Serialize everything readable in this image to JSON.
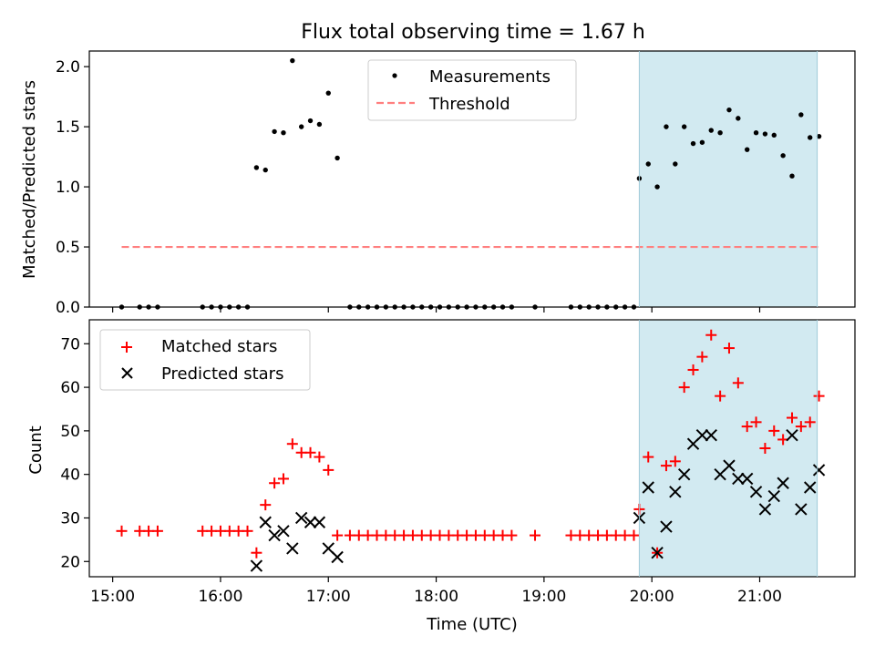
{
  "figure": {
    "title": "Flux total observing time = 1.67 h",
    "xlabel": "Time (UTC)",
    "highlight_color": "#add8e6"
  },
  "chart_data": [
    {
      "type": "scatter",
      "panel": "top",
      "title": "Flux total observing time = 1.67 h",
      "ylabel": "Matched/Predicted stars",
      "xlim": [
        "14:47",
        "21:53"
      ],
      "ylim": [
        0,
        2.13
      ],
      "yticks": [
        0.0,
        0.5,
        1.0,
        1.5,
        2.0
      ],
      "ytick_labels": [
        "0.0",
        "0.5",
        "1.0",
        "1.5",
        "2.0"
      ],
      "legend": "upper center",
      "highlight_span": [
        "19:53",
        "21:32"
      ],
      "series": [
        {
          "name": "Measurements",
          "marker": "dot",
          "color": "#000000",
          "points": [
            [
              "15:05",
              0
            ],
            [
              "15:15",
              0
            ],
            [
              "15:20",
              0
            ],
            [
              "15:25",
              0
            ],
            [
              "15:50",
              0
            ],
            [
              "15:55",
              0
            ],
            [
              "16:00",
              0
            ],
            [
              "16:05",
              0
            ],
            [
              "16:10",
              0
            ],
            [
              "16:15",
              0
            ],
            [
              "16:20",
              1.16
            ],
            [
              "16:25",
              1.14
            ],
            [
              "16:30",
              1.46
            ],
            [
              "16:35",
              1.45
            ],
            [
              "16:40",
              2.05
            ],
            [
              "16:45",
              1.5
            ],
            [
              "16:50",
              1.55
            ],
            [
              "16:55",
              1.52
            ],
            [
              "17:00",
              1.78
            ],
            [
              "17:05",
              1.24
            ],
            [
              "17:12",
              0
            ],
            [
              "17:17",
              0
            ],
            [
              "17:22",
              0
            ],
            [
              "17:27",
              0
            ],
            [
              "17:32",
              0
            ],
            [
              "17:37",
              0
            ],
            [
              "17:42",
              0
            ],
            [
              "17:47",
              0
            ],
            [
              "17:52",
              0
            ],
            [
              "17:57",
              0
            ],
            [
              "18:02",
              0
            ],
            [
              "18:07",
              0
            ],
            [
              "18:12",
              0
            ],
            [
              "18:17",
              0
            ],
            [
              "18:22",
              0
            ],
            [
              "18:27",
              0
            ],
            [
              "18:32",
              0
            ],
            [
              "18:37",
              0
            ],
            [
              "18:42",
              0
            ],
            [
              "18:55",
              0
            ],
            [
              "19:15",
              0
            ],
            [
              "19:20",
              0
            ],
            [
              "19:25",
              0
            ],
            [
              "19:30",
              0
            ],
            [
              "19:35",
              0
            ],
            [
              "19:40",
              0
            ],
            [
              "19:45",
              0
            ],
            [
              "19:50",
              0
            ],
            [
              "19:53",
              1.07
            ],
            [
              "19:58",
              1.19
            ],
            [
              "20:03",
              1.0
            ],
            [
              "20:08",
              1.5
            ],
            [
              "20:13",
              1.19
            ],
            [
              "20:18",
              1.5
            ],
            [
              "20:23",
              1.36
            ],
            [
              "20:28",
              1.37
            ],
            [
              "20:33",
              1.47
            ],
            [
              "20:38",
              1.45
            ],
            [
              "20:43",
              1.64
            ],
            [
              "20:48",
              1.57
            ],
            [
              "20:53",
              1.31
            ],
            [
              "20:58",
              1.45
            ],
            [
              "21:03",
              1.44
            ],
            [
              "21:08",
              1.43
            ],
            [
              "21:13",
              1.26
            ],
            [
              "21:18",
              1.09
            ],
            [
              "21:23",
              1.6
            ],
            [
              "21:28",
              1.41
            ],
            [
              "21:33",
              1.42
            ]
          ]
        },
        {
          "name": "Threshold",
          "marker": "dashed-line",
          "color": "#ff7f7f",
          "points": [
            [
              "15:05",
              0.5
            ],
            [
              "21:33",
              0.5
            ]
          ]
        }
      ]
    },
    {
      "type": "scatter",
      "panel": "bottom",
      "ylabel": "Count",
      "xlabel": "Time (UTC)",
      "xlim": [
        "14:47",
        "21:53"
      ],
      "ylim": [
        16.5,
        75.5
      ],
      "yticks": [
        20,
        30,
        40,
        50,
        60,
        70
      ],
      "ytick_labels": [
        "20",
        "30",
        "40",
        "50",
        "60",
        "70"
      ],
      "xticks": [
        "15:00",
        "16:00",
        "17:00",
        "18:00",
        "19:00",
        "20:00",
        "21:00"
      ],
      "xtick_labels": [
        "15:00",
        "16:00",
        "17:00",
        "18:00",
        "19:00",
        "20:00",
        "21:00"
      ],
      "legend": "upper left",
      "highlight_span": [
        "19:53",
        "21:32"
      ],
      "series": [
        {
          "name": "Matched stars",
          "marker": "plus",
          "color": "#ff0000",
          "points": [
            [
              "15:05",
              27
            ],
            [
              "15:15",
              27
            ],
            [
              "15:20",
              27
            ],
            [
              "15:25",
              27
            ],
            [
              "15:50",
              27
            ],
            [
              "15:55",
              27
            ],
            [
              "16:00",
              27
            ],
            [
              "16:05",
              27
            ],
            [
              "16:10",
              27
            ],
            [
              "16:15",
              27
            ],
            [
              "16:20",
              22
            ],
            [
              "16:25",
              33
            ],
            [
              "16:30",
              38
            ],
            [
              "16:35",
              39
            ],
            [
              "16:40",
              47
            ],
            [
              "16:45",
              45
            ],
            [
              "16:50",
              45
            ],
            [
              "16:55",
              44
            ],
            [
              "17:00",
              41
            ],
            [
              "17:05",
              26
            ],
            [
              "17:12",
              26
            ],
            [
              "17:17",
              26
            ],
            [
              "17:22",
              26
            ],
            [
              "17:27",
              26
            ],
            [
              "17:32",
              26
            ],
            [
              "17:37",
              26
            ],
            [
              "17:42",
              26
            ],
            [
              "17:47",
              26
            ],
            [
              "17:52",
              26
            ],
            [
              "17:57",
              26
            ],
            [
              "18:02",
              26
            ],
            [
              "18:07",
              26
            ],
            [
              "18:12",
              26
            ],
            [
              "18:17",
              26
            ],
            [
              "18:22",
              26
            ],
            [
              "18:27",
              26
            ],
            [
              "18:32",
              26
            ],
            [
              "18:37",
              26
            ],
            [
              "18:42",
              26
            ],
            [
              "18:55",
              26
            ],
            [
              "19:15",
              26
            ],
            [
              "19:20",
              26
            ],
            [
              "19:25",
              26
            ],
            [
              "19:30",
              26
            ],
            [
              "19:35",
              26
            ],
            [
              "19:40",
              26
            ],
            [
              "19:45",
              26
            ],
            [
              "19:50",
              26
            ],
            [
              "19:53",
              32
            ],
            [
              "19:58",
              44
            ],
            [
              "20:03",
              22
            ],
            [
              "20:08",
              42
            ],
            [
              "20:13",
              43
            ],
            [
              "20:18",
              60
            ],
            [
              "20:23",
              64
            ],
            [
              "20:28",
              67
            ],
            [
              "20:33",
              72
            ],
            [
              "20:38",
              58
            ],
            [
              "20:43",
              69
            ],
            [
              "20:48",
              61
            ],
            [
              "20:53",
              51
            ],
            [
              "20:58",
              52
            ],
            [
              "21:03",
              46
            ],
            [
              "21:08",
              50
            ],
            [
              "21:13",
              48
            ],
            [
              "21:18",
              53
            ],
            [
              "21:23",
              51
            ],
            [
              "21:28",
              52
            ],
            [
              "21:33",
              58
            ]
          ]
        },
        {
          "name": "Predicted stars",
          "marker": "x",
          "color": "#000000",
          "points": [
            [
              "16:20",
              19
            ],
            [
              "16:25",
              29
            ],
            [
              "16:30",
              26
            ],
            [
              "16:35",
              27
            ],
            [
              "16:40",
              23
            ],
            [
              "16:45",
              30
            ],
            [
              "16:50",
              29
            ],
            [
              "16:55",
              29
            ],
            [
              "17:00",
              23
            ],
            [
              "17:05",
              21
            ],
            [
              "19:53",
              30
            ],
            [
              "19:58",
              37
            ],
            [
              "20:03",
              22
            ],
            [
              "20:08",
              28
            ],
            [
              "20:13",
              36
            ],
            [
              "20:18",
              40
            ],
            [
              "20:23",
              47
            ],
            [
              "20:28",
              49
            ],
            [
              "20:33",
              49
            ],
            [
              "20:38",
              40
            ],
            [
              "20:43",
              42
            ],
            [
              "20:48",
              39
            ],
            [
              "20:53",
              39
            ],
            [
              "20:58",
              36
            ],
            [
              "21:03",
              32
            ],
            [
              "21:08",
              35
            ],
            [
              "21:13",
              38
            ],
            [
              "21:18",
              49
            ],
            [
              "21:23",
              32
            ],
            [
              "21:28",
              37
            ],
            [
              "21:33",
              41
            ]
          ]
        }
      ]
    }
  ]
}
